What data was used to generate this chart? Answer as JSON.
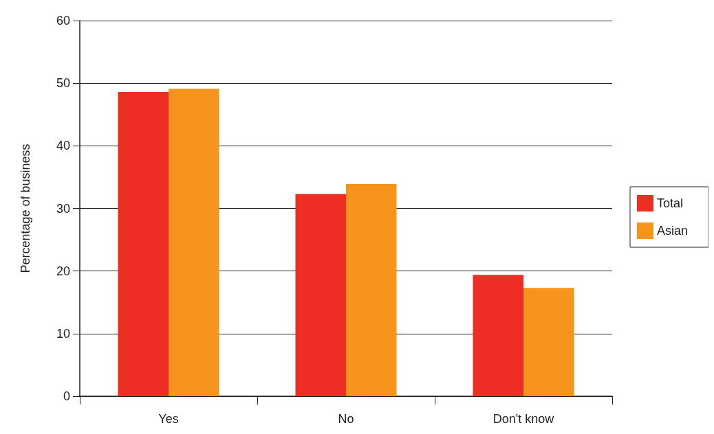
{
  "chart_data": {
    "type": "bar",
    "ylabel": "Percentage of business",
    "categories": [
      "Yes",
      "No",
      "Don't know"
    ],
    "series": [
      {
        "name": "Total",
        "color": "#ee2e24",
        "values": [
          48.6,
          32.3,
          19.4
        ]
      },
      {
        "name": "Asian",
        "color": "#f7941d",
        "values": [
          49.1,
          33.9,
          17.3
        ]
      }
    ],
    "ylim": [
      0,
      60
    ],
    "yticks": [
      0,
      10,
      20,
      30,
      40,
      50,
      60
    ],
    "grid": "y",
    "legend": "right"
  }
}
